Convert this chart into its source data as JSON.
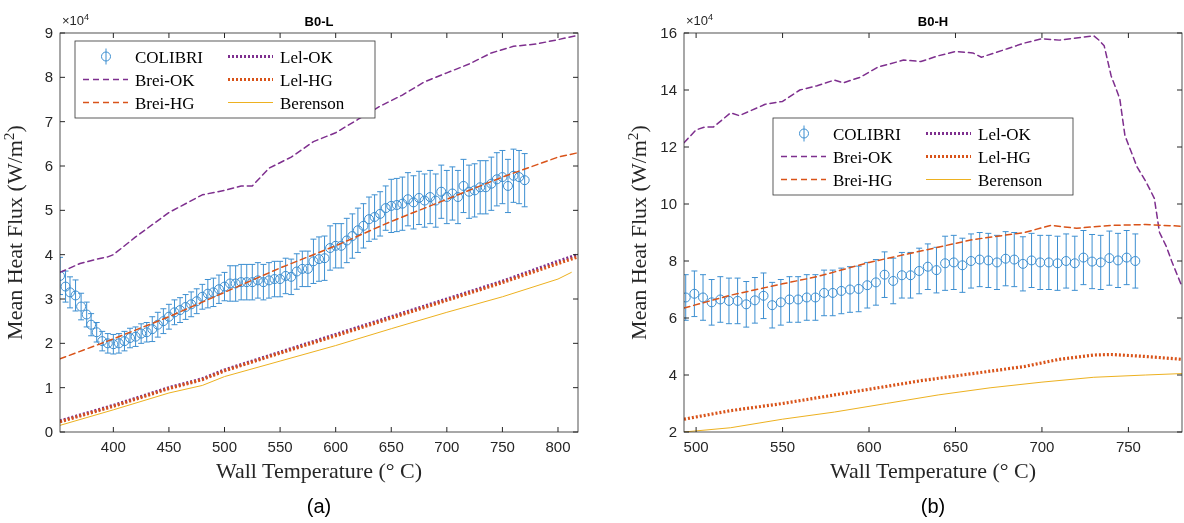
{
  "chart_data": [
    {
      "type": "line",
      "title": "B0-L",
      "xlabel": "Wall Temperature (° C)",
      "ylabel": "Mean Heat Flux (W/m$^{2}$)",
      "annotations": [
        "×10$^{4}$",
        "(a)"
      ],
      "xlim": [
        352,
        818
      ],
      "xticks": [
        400,
        450,
        500,
        550,
        600,
        650,
        700,
        750,
        800
      ],
      "ylim": [
        0,
        9
      ],
      "yticks": [
        0,
        1,
        2,
        3,
        4,
        5,
        6,
        7,
        8,
        9
      ],
      "grid": false,
      "legend": "top left",
      "series": [
        {
          "name": "COLIBRI",
          "type": "scatter",
          "marker": "circle",
          "color": "#3d8fd1",
          "x": [
            352,
            357,
            361,
            366,
            371,
            376,
            380,
            385,
            390,
            395,
            400,
            405,
            410,
            415,
            420,
            425,
            430,
            435,
            440,
            445,
            450,
            455,
            460,
            465,
            470,
            475,
            480,
            485,
            490,
            495,
            500,
            505,
            510,
            515,
            520,
            525,
            530,
            535,
            540,
            545,
            550,
            555,
            560,
            565,
            570,
            575,
            580,
            585,
            590,
            595,
            600,
            605,
            610,
            615,
            620,
            625,
            630,
            635,
            640,
            645,
            650,
            655,
            660,
            665,
            670,
            675,
            680,
            685,
            690,
            695,
            700,
            705,
            710,
            715,
            720,
            725,
            730,
            735,
            740,
            745,
            750,
            755,
            760,
            765,
            770
          ],
          "values": [
            3.52,
            3.28,
            3.15,
            3.08,
            2.83,
            2.65,
            2.42,
            2.25,
            2.05,
            2.0,
            1.98,
            2.0,
            2.05,
            2.12,
            2.15,
            2.22,
            2.25,
            2.32,
            2.42,
            2.5,
            2.6,
            2.7,
            2.75,
            2.82,
            2.88,
            2.95,
            3.05,
            3.12,
            3.15,
            3.22,
            3.28,
            3.35,
            3.35,
            3.38,
            3.38,
            3.38,
            3.42,
            3.38,
            3.42,
            3.45,
            3.45,
            3.52,
            3.5,
            3.62,
            3.68,
            3.68,
            3.85,
            3.9,
            3.92,
            4.15,
            4.2,
            4.2,
            4.32,
            4.42,
            4.55,
            4.65,
            4.8,
            4.85,
            4.92,
            5.05,
            5.1,
            5.12,
            5.15,
            5.25,
            5.18,
            5.28,
            5.22,
            5.3,
            5.22,
            5.42,
            5.3,
            5.38,
            5.3,
            5.55,
            5.42,
            5.45,
            5.52,
            5.52,
            5.6,
            5.7,
            5.75,
            5.55,
            5.78,
            5.75,
            5.68
          ],
          "errors": [
            0.42,
            0.35,
            0.35,
            0.35,
            0.3,
            0.28,
            0.25,
            0.22,
            0.22,
            0.22,
            0.22,
            0.22,
            0.22,
            0.22,
            0.22,
            0.22,
            0.22,
            0.28,
            0.28,
            0.28,
            0.28,
            0.28,
            0.28,
            0.28,
            0.28,
            0.28,
            0.28,
            0.32,
            0.32,
            0.32,
            0.32,
            0.4,
            0.4,
            0.4,
            0.4,
            0.4,
            0.4,
            0.4,
            0.4,
            0.4,
            0.4,
            0.4,
            0.4,
            0.4,
            0.4,
            0.4,
            0.5,
            0.5,
            0.5,
            0.5,
            0.5,
            0.5,
            0.5,
            0.5,
            0.5,
            0.5,
            0.5,
            0.5,
            0.5,
            0.5,
            0.6,
            0.6,
            0.6,
            0.6,
            0.6,
            0.6,
            0.6,
            0.6,
            0.6,
            0.6,
            0.6,
            0.6,
            0.6,
            0.6,
            0.6,
            0.6,
            0.6,
            0.6,
            0.6,
            0.6,
            0.6,
            0.6,
            0.6,
            0.6,
            0.6
          ]
        },
        {
          "name": "Brei-OK",
          "type": "line",
          "line_style": "dashed",
          "color": "#7e2f8e",
          "x": [
            352,
            370,
            385,
            395,
            400,
            420,
            450,
            480,
            500,
            515,
            525,
            540,
            560,
            580,
            600,
            620,
            640,
            660,
            680,
            700,
            720,
            740,
            760,
            780,
            800,
            818
          ],
          "values": [
            3.6,
            3.8,
            3.9,
            3.95,
            4.0,
            4.4,
            4.95,
            5.35,
            5.45,
            5.55,
            5.55,
            5.95,
            6.2,
            6.55,
            6.75,
            7.05,
            7.35,
            7.6,
            7.9,
            8.1,
            8.3,
            8.55,
            8.7,
            8.75,
            8.85,
            8.95
          ]
        },
        {
          "name": "Brei-HG",
          "type": "line",
          "line_style": "dashed",
          "color": "#d95319",
          "x": [
            352,
            400,
            450,
            500,
            550,
            600,
            650,
            700,
            750,
            800,
            818
          ],
          "values": [
            1.65,
            2.1,
            2.6,
            3.15,
            3.7,
            4.2,
            4.75,
            5.25,
            5.75,
            6.2,
            6.3
          ]
        },
        {
          "name": "Lel-OK",
          "type": "line",
          "line_style": "dotted",
          "color": "#7e2f8e",
          "x": [
            352,
            400,
            450,
            480,
            500,
            550,
            600,
            650,
            700,
            750,
            800,
            818
          ],
          "values": [
            0.25,
            0.6,
            1.0,
            1.2,
            1.4,
            1.8,
            2.2,
            2.6,
            3.0,
            3.4,
            3.85,
            4.0
          ]
        },
        {
          "name": "Lel-HG",
          "type": "line",
          "line_style": "dotted",
          "color": "#d95319",
          "x": [
            352,
            400,
            450,
            480,
            500,
            550,
            600,
            650,
            700,
            750,
            800,
            818
          ],
          "values": [
            0.23,
            0.58,
            0.98,
            1.18,
            1.38,
            1.78,
            2.17,
            2.57,
            2.97,
            3.37,
            3.8,
            3.95
          ]
        },
        {
          "name": "Berenson",
          "type": "line",
          "line_style": "solid",
          "color": "#edb120",
          "x": [
            352,
            400,
            450,
            480,
            500,
            550,
            600,
            650,
            700,
            750,
            800,
            812
          ],
          "values": [
            0.15,
            0.5,
            0.88,
            1.05,
            1.25,
            1.6,
            1.95,
            2.33,
            2.7,
            3.05,
            3.45,
            3.6
          ]
        }
      ]
    },
    {
      "type": "line",
      "title": "B0-H",
      "xlabel": "Wall Temperature (° C)",
      "ylabel": "Mean Heat Flux (W/m$^{2}$)",
      "annotations": [
        "×10$^{4}$",
        "(b)"
      ],
      "xlim": [
        493,
        781
      ],
      "xticks": [
        500,
        550,
        600,
        650,
        700,
        750
      ],
      "ylim": [
        2,
        16
      ],
      "yticks": [
        2,
        4,
        6,
        8,
        10,
        12,
        14,
        16
      ],
      "grid": false,
      "legend": "top",
      "series": [
        {
          "name": "COLIBRI",
          "type": "scatter",
          "marker": "circle",
          "color": "#3d8fd1",
          "x": [
            494,
            499,
            504,
            509,
            514,
            519,
            524,
            529,
            534,
            539,
            544,
            549,
            554,
            559,
            564,
            569,
            574,
            579,
            584,
            589,
            594,
            599,
            604,
            609,
            614,
            619,
            624,
            629,
            634,
            639,
            644,
            649,
            654,
            659,
            664,
            669,
            674,
            679,
            684,
            689,
            694,
            699,
            704,
            709,
            714,
            719,
            724,
            729,
            734,
            739,
            744,
            749,
            754
          ],
          "values": [
            6.72,
            6.85,
            6.72,
            6.55,
            6.65,
            6.6,
            6.6,
            6.48,
            6.62,
            6.78,
            6.45,
            6.55,
            6.65,
            6.65,
            6.72,
            6.72,
            6.88,
            6.88,
            6.95,
            7.0,
            7.02,
            7.15,
            7.25,
            7.52,
            7.3,
            7.5,
            7.5,
            7.65,
            7.8,
            7.68,
            7.92,
            7.95,
            7.85,
            8.0,
            8.05,
            8.02,
            7.95,
            8.08,
            8.05,
            7.9,
            8.02,
            7.95,
            7.95,
            7.92,
            8.0,
            7.92,
            8.12,
            7.98,
            7.95,
            8.1,
            8.02,
            8.12,
            8.0
          ],
          "errors": [
            0.8,
            0.8,
            0.8,
            0.8,
            0.8,
            0.8,
            0.8,
            0.8,
            0.8,
            0.8,
            0.8,
            0.8,
            0.8,
            0.8,
            0.8,
            0.8,
            0.8,
            0.8,
            0.8,
            0.8,
            0.8,
            0.8,
            0.8,
            0.8,
            0.8,
            0.8,
            0.8,
            0.8,
            0.8,
            0.8,
            0.95,
            0.95,
            0.95,
            0.95,
            0.95,
            0.95,
            0.95,
            0.95,
            0.95,
            0.95,
            0.95,
            0.95,
            0.95,
            0.95,
            0.95,
            0.95,
            0.95,
            0.95,
            0.95,
            0.95,
            0.95,
            0.95,
            0.95
          ]
        },
        {
          "name": "Brei-OK",
          "type": "line",
          "line_style": "dashed",
          "color": "#7e2f8e",
          "x": [
            493,
            500,
            505,
            510,
            520,
            525,
            540,
            550,
            560,
            570,
            580,
            585,
            595,
            605,
            620,
            630,
            640,
            650,
            660,
            665,
            680,
            690,
            700,
            710,
            730,
            733,
            736,
            740,
            745,
            748,
            755,
            760,
            765,
            768,
            772,
            775,
            781
          ],
          "values": [
            12.15,
            12.6,
            12.7,
            12.7,
            13.2,
            13.1,
            13.5,
            13.6,
            14.0,
            14.15,
            14.35,
            14.25,
            14.45,
            14.8,
            15.05,
            15.0,
            15.2,
            15.35,
            15.3,
            15.15,
            15.45,
            15.65,
            15.8,
            15.75,
            15.9,
            15.75,
            15.55,
            14.5,
            13.7,
            12.4,
            11.3,
            10.8,
            10.2,
            9.0,
            8.5,
            8.0,
            7.1
          ]
        },
        {
          "name": "Brei-HG",
          "type": "line",
          "line_style": "dashed",
          "color": "#d95319",
          "x": [
            493,
            520,
            550,
            570,
            600,
            630,
            660,
            690,
            705,
            720,
            740,
            760,
            781
          ],
          "values": [
            6.35,
            6.8,
            7.2,
            7.45,
            7.95,
            8.35,
            8.75,
            9.0,
            9.25,
            9.15,
            9.25,
            9.28,
            9.22
          ]
        },
        {
          "name": "Lel-OK",
          "type": "line",
          "line_style": "dotted",
          "color": "#7e2f8e"
        },
        {
          "name": "Lel-HG",
          "type": "line",
          "line_style": "dotted",
          "color": "#d95319",
          "x": [
            493,
            520,
            550,
            580,
            600,
            630,
            660,
            690,
            710,
            730,
            740,
            760,
            781
          ],
          "values": [
            2.45,
            2.75,
            3.0,
            3.3,
            3.5,
            3.8,
            4.05,
            4.3,
            4.55,
            4.7,
            4.72,
            4.65,
            4.55
          ]
        },
        {
          "name": "Berenson",
          "type": "line",
          "line_style": "solid",
          "color": "#edb120",
          "x": [
            493,
            520,
            550,
            580,
            610,
            640,
            670,
            700,
            730,
            760,
            781
          ],
          "values": [
            2.0,
            2.15,
            2.45,
            2.7,
            3.0,
            3.3,
            3.55,
            3.75,
            3.92,
            4.0,
            4.05
          ]
        }
      ]
    }
  ]
}
